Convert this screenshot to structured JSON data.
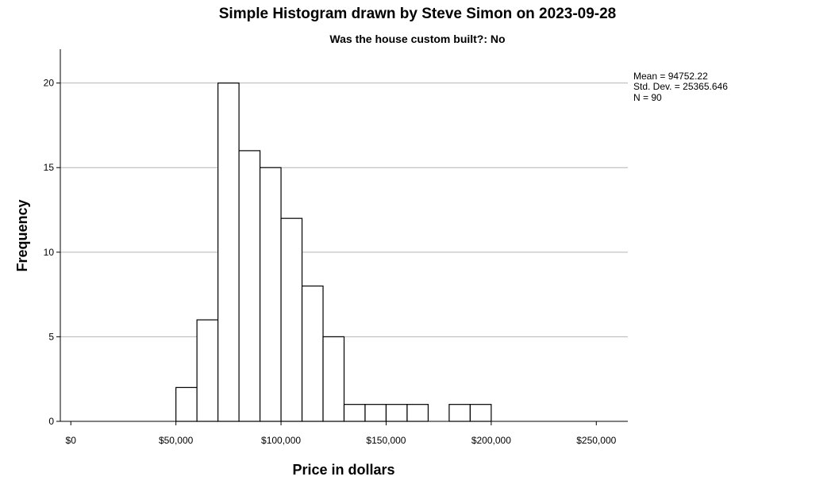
{
  "chart_data": {
    "type": "bar",
    "title": "Simple Histogram drawn by Steve Simon on 2023-09-28",
    "subtitle": "Was the house custom built?: No",
    "xlabel": "Price in dollars",
    "ylabel": "Frequency",
    "xlim": [
      -5000,
      265000
    ],
    "ylim": [
      0,
      22
    ],
    "x_ticks": [
      {
        "value": 0,
        "label": "$0"
      },
      {
        "value": 50000,
        "label": "$50,000"
      },
      {
        "value": 100000,
        "label": "$100,000"
      },
      {
        "value": 150000,
        "label": "$150,000"
      },
      {
        "value": 200000,
        "label": "$200,000"
      },
      {
        "value": 250000,
        "label": "$250,000"
      }
    ],
    "y_ticks": [
      0,
      5,
      10,
      15,
      20
    ],
    "grid": "horizontal",
    "bin_width": 10000,
    "bins": [
      {
        "start": 50000,
        "count": 2
      },
      {
        "start": 60000,
        "count": 6
      },
      {
        "start": 70000,
        "count": 20
      },
      {
        "start": 80000,
        "count": 16
      },
      {
        "start": 90000,
        "count": 15
      },
      {
        "start": 100000,
        "count": 12
      },
      {
        "start": 110000,
        "count": 8
      },
      {
        "start": 120000,
        "count": 5
      },
      {
        "start": 130000,
        "count": 1
      },
      {
        "start": 140000,
        "count": 1
      },
      {
        "start": 150000,
        "count": 1
      },
      {
        "start": 160000,
        "count": 1
      },
      {
        "start": 180000,
        "count": 1
      },
      {
        "start": 190000,
        "count": 1
      }
    ],
    "stats": {
      "mean": "Mean = 94752.22",
      "sd": "Std. Dev. = 25365.646",
      "n": "N = 90"
    },
    "stats_placement": "top-right",
    "colors": {
      "bar_fill": "#ffffff",
      "bar_stroke": "#000000",
      "grid": "#b4b4b4"
    }
  }
}
